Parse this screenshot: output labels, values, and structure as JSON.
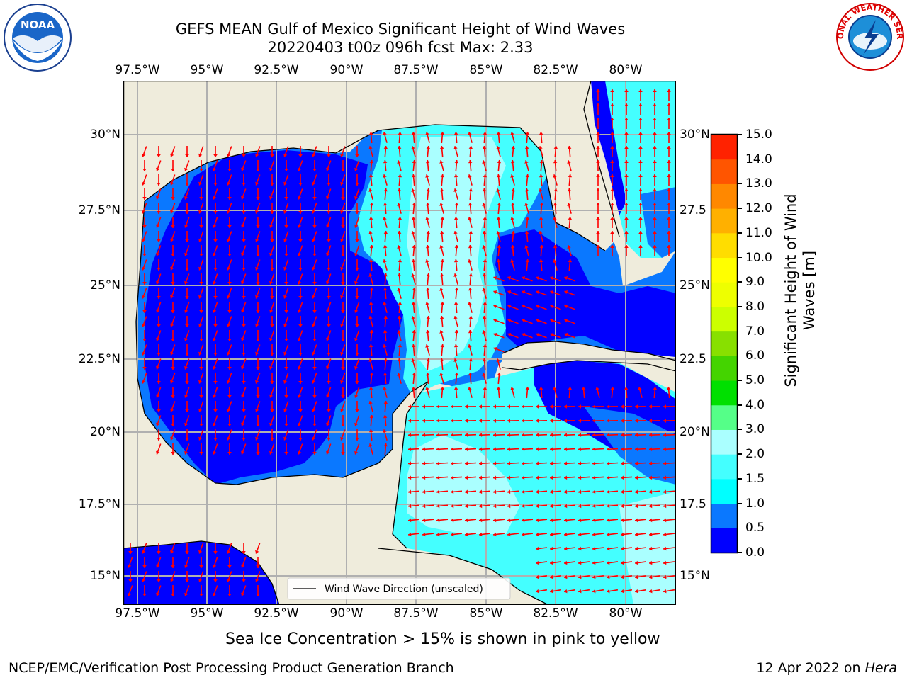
{
  "header": {
    "title_line1": "GEFS MEAN Gulf of Mexico Significant Height of Wind Waves",
    "title_line2": "20220403 t00z 096h fcst   Max: 2.33"
  },
  "logos": {
    "left_text": "NOAA",
    "left_ring": "NATIONAL OCEANIC AND ATMOSPHERIC ADMINISTRATION · U.S. DEPARTMENT OF COMMERCE",
    "right_ring": "NATIONAL WEATHER SERVICE"
  },
  "map": {
    "lon_ticks": [
      "97.5°W",
      "95°W",
      "92.5°W",
      "90°W",
      "87.5°W",
      "85°W",
      "82.5°W",
      "80°W"
    ],
    "lat_ticks": [
      "30°N",
      "27.5°N",
      "25°N",
      "22.5°N",
      "20°N",
      "17.5°N",
      "15°N"
    ],
    "lat_ticks_right": [
      "30°N",
      "27.5",
      "25°N",
      "22.5",
      "20°N",
      "17.5",
      "15°N"
    ],
    "legend_label": "Wind Wave Direction (unscaled)",
    "land_color": "#efecdc",
    "arrow_color": "#ff0000"
  },
  "colorbar": {
    "label_line1": "Significant Height of Wind",
    "label_line2": "Waves [m]",
    "ticks": [
      "0.0",
      "0.5",
      "1.0",
      "1.5",
      "2.0",
      "3.0",
      "4.0",
      "5.0",
      "6.0",
      "7.0",
      "8.0",
      "9.0",
      "10.0",
      "11.0",
      "12.0",
      "13.0",
      "14.0",
      "15.0"
    ],
    "colors": [
      "#0000ff",
      "#0a78ff",
      "#00ffff",
      "#44ffff",
      "#aaffff",
      "#55ff88",
      "#00e000",
      "#44d400",
      "#88e000",
      "#ccff00",
      "#eeff00",
      "#ffff00",
      "#ffdd00",
      "#ffb000",
      "#ff8800",
      "#ff5500",
      "#ff2200",
      "#ff0000"
    ]
  },
  "footer": {
    "note": "Sea Ice Concentration > 15% is shown in pink to yellow",
    "left": "NCEP/EMC/Verification Post Processing Product Generation Branch",
    "right_date": "12 Apr 2022 on ",
    "right_host": "Hera"
  }
}
